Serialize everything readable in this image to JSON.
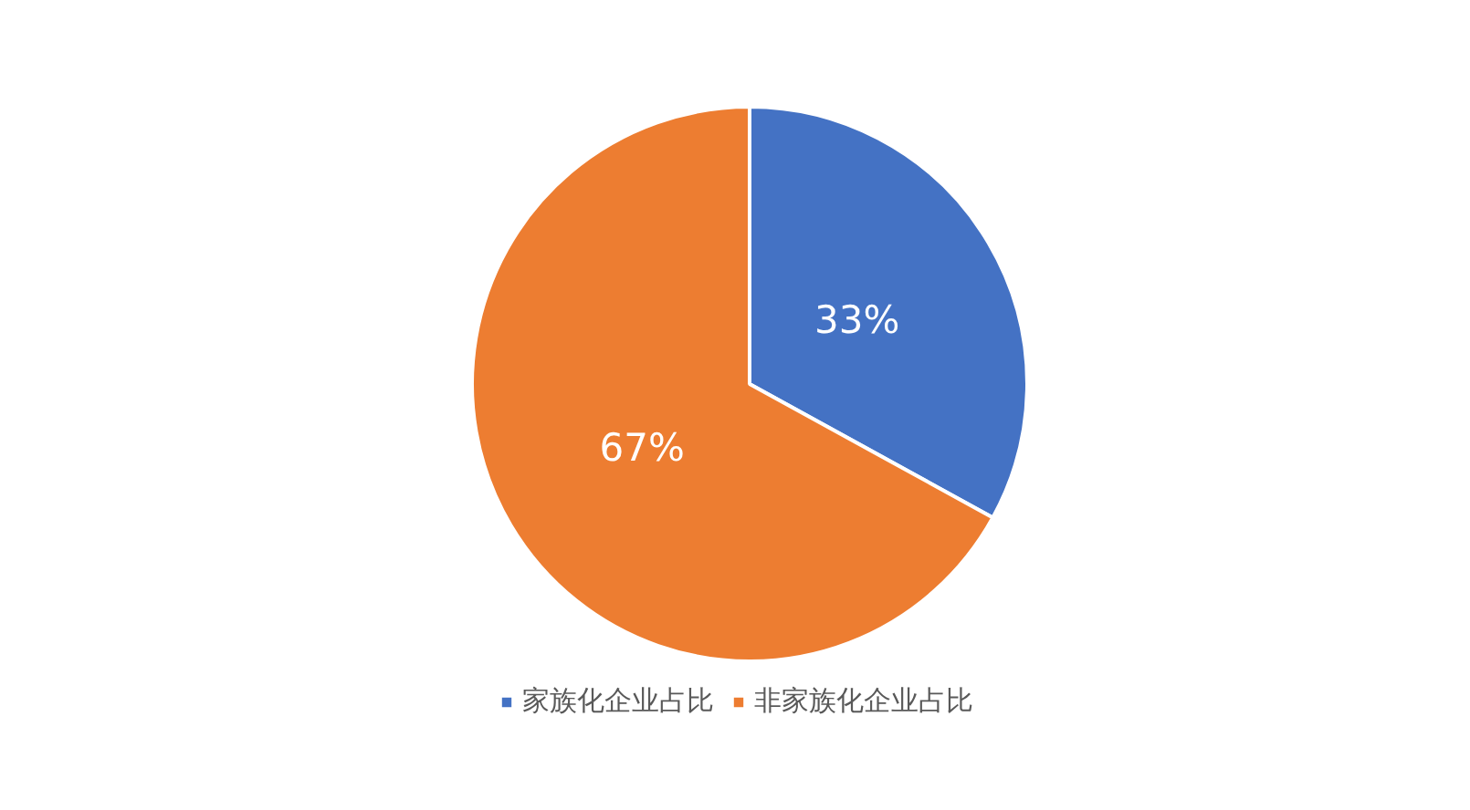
{
  "chart_data": {
    "type": "pie",
    "categories": [
      "家族化企业占比",
      "非家族化企业占比"
    ],
    "values": [
      33,
      67
    ],
    "colors": [
      "#4472c4",
      "#ed7d31"
    ],
    "value_labels": [
      "33%",
      "67%"
    ],
    "legend": "bottom"
  }
}
